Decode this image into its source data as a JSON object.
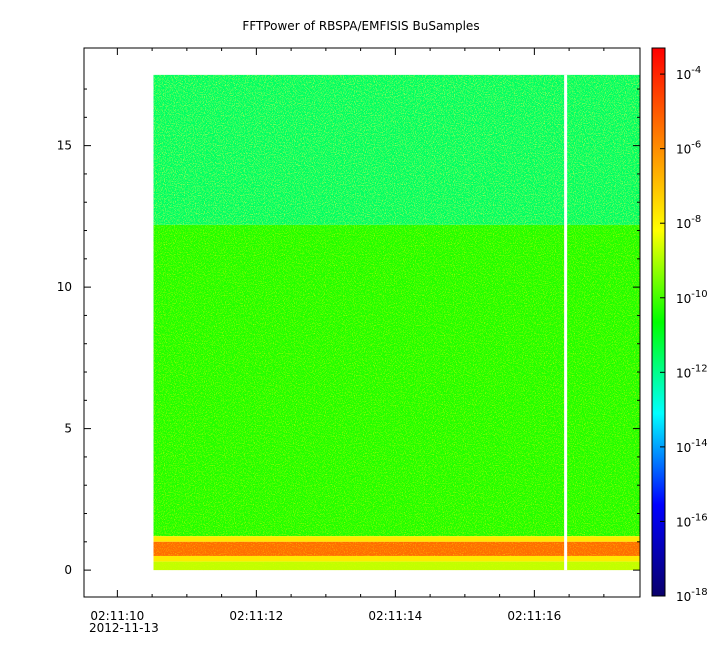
{
  "chart_data": {
    "type": "heatmap",
    "title": "FFTPower of RBSPA/EMFISIS  BuSamples",
    "xlabel": "",
    "ylabel": "",
    "x_ticks": [
      {
        "value": 10,
        "label": "02:11:10"
      },
      {
        "value": 12,
        "label": "02:11:12"
      },
      {
        "value": 14,
        "label": "02:11:14"
      },
      {
        "value": 16,
        "label": "02:11:16"
      }
    ],
    "x_minor_ticks": [
      10.5,
      11,
      11.5,
      12.5,
      13,
      13.5,
      14.5,
      15,
      15.5,
      16.5,
      17
    ],
    "x_sub_label": "2012-11-13",
    "xlim": [
      9.52,
      17.52
    ],
    "y_ticks": [
      0,
      5,
      10,
      15
    ],
    "y_minor_ticks": [
      1,
      2,
      3,
      4,
      6,
      7,
      8,
      9,
      11,
      12,
      13,
      14,
      16,
      17
    ],
    "ylim": [
      -0.95,
      18.45
    ],
    "data_x_range": [
      10.52,
      17.52
    ],
    "data_y_range": [
      0,
      17.5
    ],
    "gap_x": 16.45,
    "bands": [
      {
        "y0": 12.2,
        "y1": 17.5,
        "log10_power": -11.6
      },
      {
        "y0": 1.2,
        "y1": 12.2,
        "log10_power": -10.3
      },
      {
        "y0": 1.0,
        "y1": 1.2,
        "log10_power": -7.8
      },
      {
        "y0": 0.5,
        "y1": 1.0,
        "log10_power": -5.4
      },
      {
        "y0": 0.3,
        "y1": 0.5,
        "log10_power": -7.8
      },
      {
        "y0": 0.0,
        "y1": 0.3,
        "log10_power": -8.8
      }
    ],
    "colorbar": {
      "scale": "log",
      "range": [
        -18,
        -3.3
      ],
      "tick_exponents": [
        -18,
        -16,
        -14,
        -12,
        -10,
        -8,
        -6,
        -4
      ],
      "tick_base": "10",
      "colors": [
        "#0a006b",
        "#0000ff",
        "#00ffff",
        "#00ff00",
        "#ffff00",
        "#ff8000",
        "#ff0000"
      ]
    }
  }
}
